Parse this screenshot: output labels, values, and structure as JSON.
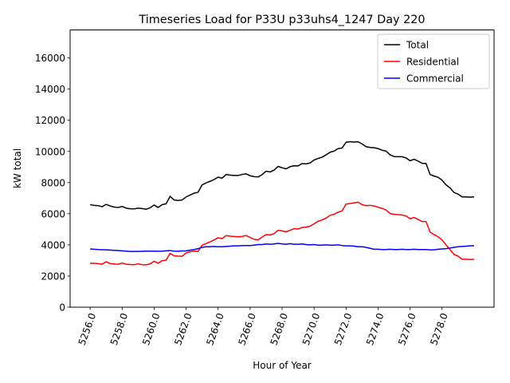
{
  "chart_data": {
    "type": "line",
    "title": "Timeseries Load for P33U p33uhs4_1247  Day 220",
    "xlabel": "Hour of Year",
    "ylabel": "kW total",
    "xlim": [
      5254.75,
      5281.25
    ],
    "ylim": [
      0,
      17800
    ],
    "xticks": [
      5256,
      5258,
      5260,
      5262,
      5264,
      5266,
      5268,
      5270,
      5272,
      5274,
      5276,
      5278
    ],
    "xtick_labels": [
      "5256.0",
      "5258.0",
      "5260.0",
      "5262.0",
      "5264.0",
      "5266.0",
      "5268.0",
      "5270.0",
      "5272.0",
      "5274.0",
      "5276.0",
      "5278.0"
    ],
    "yticks": [
      0,
      2000,
      4000,
      6000,
      8000,
      10000,
      12000,
      14000,
      16000
    ],
    "ytick_labels": [
      "0",
      "2000",
      "4000",
      "6000",
      "8000",
      "10000",
      "12000",
      "14000",
      "16000"
    ],
    "legend_position": "top-right",
    "x_start": 5256.0,
    "x_step": 0.25,
    "series": [
      {
        "name": "Total",
        "color": "#000000",
        "values": [
          6580,
          6540,
          6520,
          6450,
          6600,
          6500,
          6430,
          6400,
          6470,
          6360,
          6320,
          6310,
          6360,
          6330,
          6290,
          6380,
          6560,
          6400,
          6580,
          6640,
          7120,
          6880,
          6850,
          6880,
          7080,
          7200,
          7320,
          7380,
          7850,
          7980,
          8080,
          8200,
          8350,
          8280,
          8520,
          8480,
          8460,
          8460,
          8520,
          8560,
          8440,
          8380,
          8360,
          8510,
          8730,
          8680,
          8800,
          9040,
          8950,
          8880,
          9020,
          9080,
          9070,
          9220,
          9200,
          9260,
          9450,
          9550,
          9630,
          9780,
          9950,
          10020,
          10180,
          10220,
          10590,
          10620,
          10600,
          10620,
          10480,
          10300,
          10260,
          10240,
          10180,
          10080,
          10020,
          9780,
          9670,
          9660,
          9660,
          9580,
          9400,
          9500,
          9380,
          9240,
          9220,
          8520,
          8420,
          8340,
          8150,
          7850,
          7660,
          7360,
          7260,
          7080,
          7080,
          7060,
          7080
        ]
      },
      {
        "name": "Residential",
        "color": "#ff0000",
        "values": [
          2820,
          2820,
          2800,
          2760,
          2920,
          2800,
          2780,
          2750,
          2840,
          2760,
          2740,
          2730,
          2780,
          2730,
          2720,
          2780,
          2950,
          2820,
          2980,
          3020,
          3460,
          3300,
          3280,
          3270,
          3480,
          3560,
          3600,
          3580,
          3980,
          4080,
          4200,
          4320,
          4460,
          4400,
          4600,
          4560,
          4540,
          4520,
          4540,
          4600,
          4480,
          4360,
          4320,
          4500,
          4660,
          4640,
          4720,
          4940,
          4900,
          4840,
          4940,
          5040,
          5020,
          5120,
          5140,
          5200,
          5350,
          5520,
          5600,
          5720,
          5900,
          5960,
          6100,
          6180,
          6620,
          6650,
          6700,
          6740,
          6580,
          6520,
          6540,
          6500,
          6420,
          6340,
          6240,
          6010,
          5960,
          5940,
          5920,
          5860,
          5680,
          5760,
          5640,
          5500,
          5500,
          4820,
          4660,
          4520,
          4320,
          4000,
          3700,
          3380,
          3280,
          3080,
          3080,
          3060,
          3080
        ]
      },
      {
        "name": "Commercial",
        "color": "#0000ff",
        "values": [
          3740,
          3720,
          3700,
          3690,
          3680,
          3670,
          3650,
          3640,
          3620,
          3600,
          3580,
          3580,
          3580,
          3590,
          3600,
          3600,
          3600,
          3590,
          3600,
          3620,
          3640,
          3600,
          3590,
          3610,
          3620,
          3660,
          3700,
          3760,
          3840,
          3880,
          3880,
          3900,
          3880,
          3880,
          3900,
          3920,
          3940,
          3940,
          3960,
          3960,
          3960,
          3980,
          4020,
          4020,
          4060,
          4040,
          4060,
          4100,
          4060,
          4040,
          4080,
          4040,
          4040,
          4060,
          4020,
          4000,
          4020,
          3980,
          3980,
          4000,
          3980,
          3980,
          4000,
          3960,
          3940,
          3940,
          3920,
          3880,
          3880,
          3840,
          3780,
          3720,
          3720,
          3700,
          3700,
          3720,
          3700,
          3700,
          3720,
          3700,
          3700,
          3720,
          3700,
          3700,
          3700,
          3680,
          3680,
          3720,
          3740,
          3760,
          3800,
          3840,
          3880,
          3900,
          3920,
          3940,
          3950
        ]
      }
    ]
  }
}
